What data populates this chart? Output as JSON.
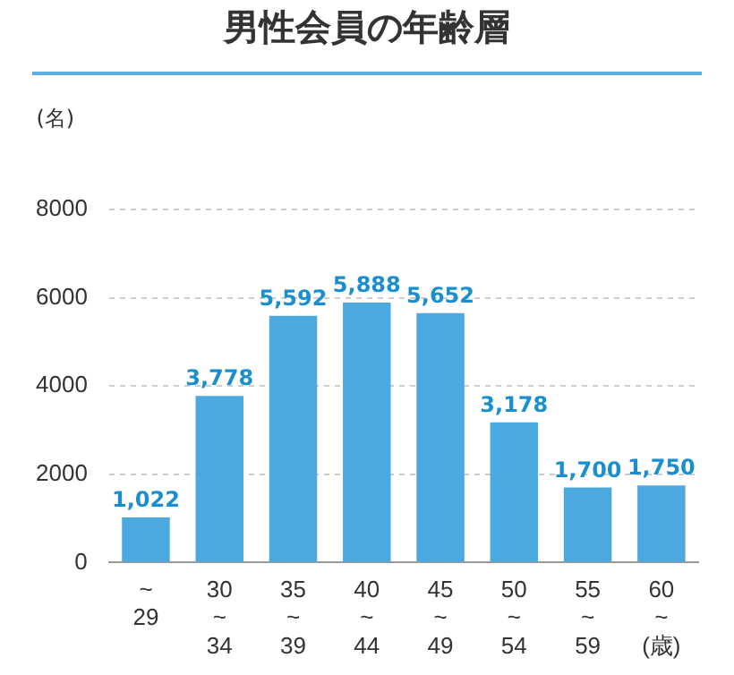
{
  "chart_data": {
    "type": "bar",
    "title": "男性会員の年齢層",
    "ylabel": "(名)",
    "categories": [
      "~\n29",
      "30\n~\n34",
      "35\n~\n39",
      "40\n~\n44",
      "45\n~\n49",
      "50\n~\n54",
      "55\n~\n59",
      "60\n~\n(歳)"
    ],
    "values": [
      1022,
      3778,
      5592,
      5888,
      5652,
      3178,
      1700,
      1750
    ],
    "value_labels": [
      "1,022",
      "3,778",
      "5,592",
      "5,888",
      "5,652",
      "3,178",
      "1,700",
      "1,750"
    ],
    "color": "#4ba9df",
    "ylim": [
      0,
      8000
    ],
    "yticks": [
      0,
      2000,
      4000,
      6000,
      8000
    ],
    "grid": "y",
    "legend": false
  }
}
